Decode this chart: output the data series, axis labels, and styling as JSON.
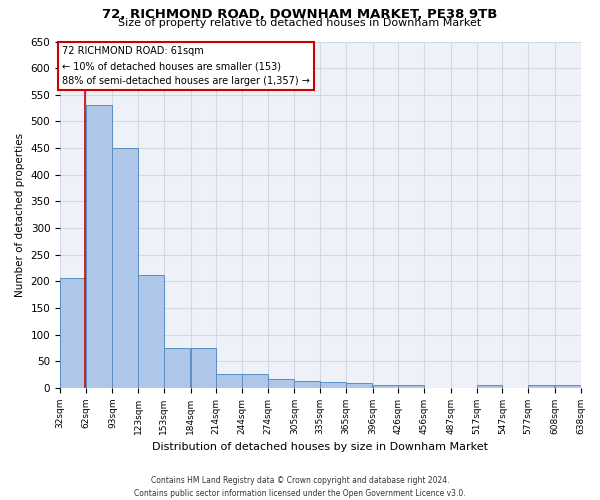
{
  "title1": "72, RICHMOND ROAD, DOWNHAM MARKET, PE38 9TB",
  "title2": "Size of property relative to detached houses in Downham Market",
  "xlabel": "Distribution of detached houses by size in Downham Market",
  "ylabel": "Number of detached properties",
  "footer1": "Contains HM Land Registry data © Crown copyright and database right 2024.",
  "footer2": "Contains public sector information licensed under the Open Government Licence v3.0.",
  "annotation_title": "72 RICHMOND ROAD: 61sqm",
  "annotation_line1": "← 10% of detached houses are smaller (153)",
  "annotation_line2": "88% of semi-detached houses are larger (1,357) →",
  "property_sqm": 61,
  "bar_left_edges": [
    32,
    62,
    93,
    123,
    153,
    184,
    214,
    244,
    274,
    305,
    335,
    365,
    396,
    426,
    456,
    487,
    517,
    547,
    577,
    608
  ],
  "bar_heights": [
    207,
    530,
    451,
    212,
    76,
    75,
    27,
    27,
    17,
    14,
    12,
    9,
    6,
    5,
    0,
    0,
    5,
    0,
    5,
    5
  ],
  "bin_width": 30,
  "bar_color": "#aec6e8",
  "bar_edge_color": "#5a8fc0",
  "grid_color": "#d0d8e8",
  "background_color": "#eef2f8",
  "marker_color": "#cc0000",
  "ylim": [
    0,
    650
  ],
  "yticks": [
    0,
    50,
    100,
    150,
    200,
    250,
    300,
    350,
    400,
    450,
    500,
    550,
    600,
    650
  ],
  "x_labels": [
    "32sqm",
    "62sqm",
    "93sqm",
    "123sqm",
    "153sqm",
    "184sqm",
    "214sqm",
    "244sqm",
    "274sqm",
    "305sqm",
    "335sqm",
    "365sqm",
    "396sqm",
    "426sqm",
    "456sqm",
    "487sqm",
    "517sqm",
    "547sqm",
    "577sqm",
    "608sqm",
    "638sqm"
  ]
}
